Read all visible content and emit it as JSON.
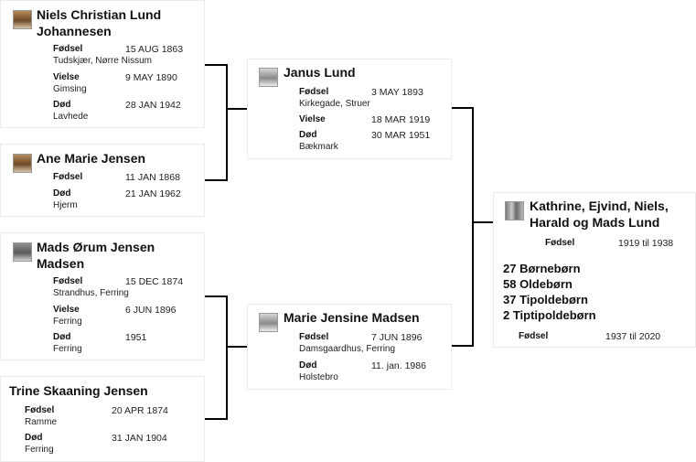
{
  "people": {
    "niels": {
      "name": "Niels Christian Lund Johannesen",
      "birth_label": "Fødsel",
      "birth_date": "15 AUG 1863",
      "birth_place": "Tudskjær, Nørre Nissum",
      "marriage_label": "Vielse",
      "marriage_date": "9 MAY 1890",
      "marriage_place": "Gimsing",
      "death_label": "Død",
      "death_date": "28 JAN 1942",
      "death_place": "Lavhede"
    },
    "ane": {
      "name": "Ane Marie Jensen",
      "birth_label": "Fødsel",
      "birth_date": "11 JAN 1868",
      "death_label": "Død",
      "death_date": "21 JAN 1962",
      "death_place": "Hjerm"
    },
    "mads": {
      "name": "Mads Ørum Jensen Madsen",
      "birth_label": "Fødsel",
      "birth_date": "15 DEC 1874",
      "birth_place": "Strandhus, Ferring",
      "marriage_label": "Vielse",
      "marriage_date": "6 JUN 1896",
      "marriage_place": "Ferring",
      "death_label": "Død",
      "death_date": "1951",
      "death_place": "Ferring"
    },
    "trine": {
      "name": "Trine Skaaning Jensen",
      "birth_label": "Fødsel",
      "birth_date": "20 APR 1874",
      "birth_place": "Ramme",
      "death_label": "Død",
      "death_date": "31 JAN 1904",
      "death_place": "Ferring"
    },
    "janus": {
      "name": "Janus Lund",
      "birth_label": "Fødsel",
      "birth_date": "3 MAY 1893",
      "birth_place": "Kirkegade, Struer",
      "marriage_label": "Vielse",
      "marriage_date": "18 MAR 1919",
      "death_label": "Død",
      "death_date": "30 MAR 1951",
      "death_place": "Bækmark"
    },
    "marie": {
      "name": "Marie Jensine Madsen",
      "birth_label": "Fødsel",
      "birth_date": "7 JUN 1896",
      "birth_place": "Damsgaardhus, Ferring",
      "death_label": "Død",
      "death_date": "11. jan. 1986",
      "death_place": "Holstebro"
    },
    "children": {
      "name": "Kathrine, Ejvind, Niels, Harald og Mads Lund",
      "birth_label": "Fødsel",
      "birth_range": "1919 til 1938",
      "descendants": [
        "27 Børnebørn",
        "58 Oldebørn",
        "37 Tipoldebørn",
        "2 Tiptipoldebørn"
      ],
      "birth2_label": "Fødsel",
      "birth2_range": "1937 til 2020"
    }
  }
}
